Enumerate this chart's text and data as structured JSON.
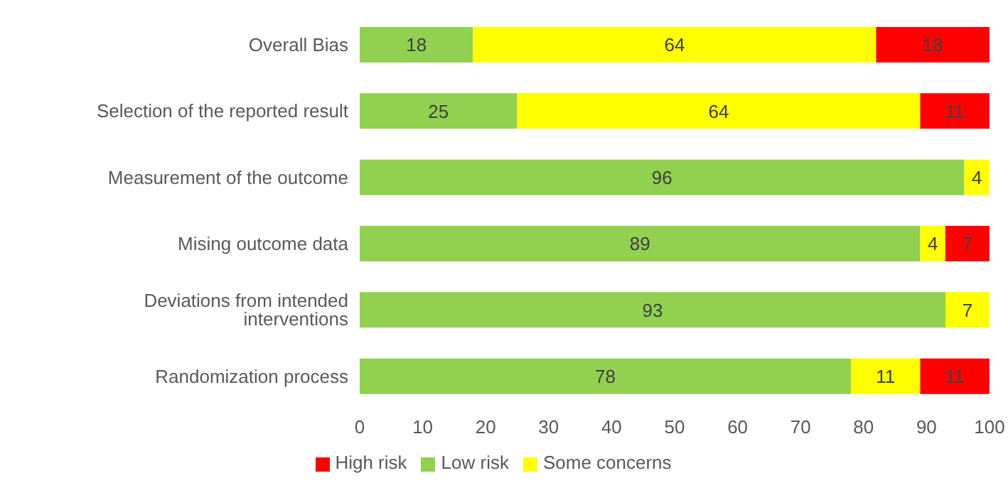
{
  "chart_data": {
    "type": "bar",
    "orientation": "horizontal",
    "stacked": true,
    "data_labels": true,
    "legend": "bottom",
    "grid": false,
    "categories": [
      "Overall Bias",
      "Selection of the reported result",
      "Measurement of the outcome",
      "Mising outcome data",
      "Deviations from intended interventions",
      "Randomization process"
    ],
    "series": [
      {
        "name": "Low risk",
        "color": "#92d050",
        "values": [
          18,
          25,
          96,
          89,
          93,
          78
        ]
      },
      {
        "name": "Some concerns",
        "color": "#ffff00",
        "values": [
          64,
          64,
          4,
          4,
          7,
          11
        ]
      },
      {
        "name": "High risk",
        "color": "#ff0000",
        "values": [
          18,
          11,
          null,
          7,
          null,
          11
        ]
      }
    ],
    "xlim": [
      0,
      100
    ],
    "xticks": [
      0,
      10,
      20,
      30,
      40,
      50,
      60,
      70,
      80,
      90,
      100
    ]
  }
}
